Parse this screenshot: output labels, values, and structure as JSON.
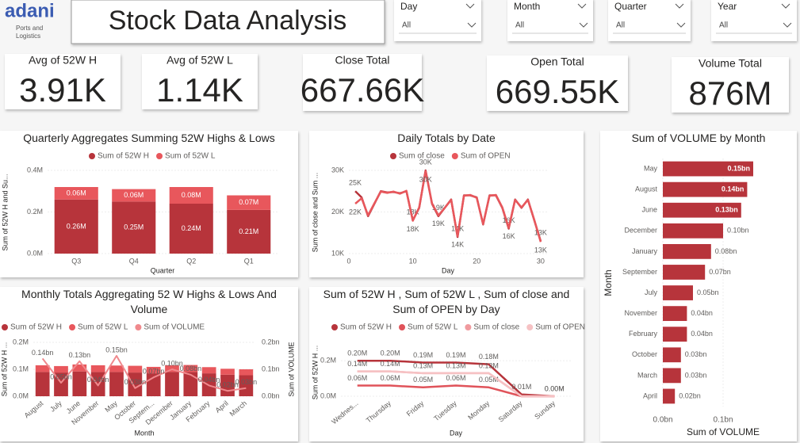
{
  "logo": {
    "brand": "adani",
    "tagline": [
      "Ports and",
      "Logistics"
    ]
  },
  "header": {
    "title": "Stock Data Analysis"
  },
  "slicers": [
    {
      "label": "Day",
      "value": "All"
    },
    {
      "label": "Month",
      "value": "All"
    },
    {
      "label": "Quarter",
      "value": "All"
    },
    {
      "label": "Year",
      "value": "All"
    }
  ],
  "cards": [
    {
      "label": "Avg of 52W H",
      "value": "3.91K"
    },
    {
      "label": "Avg of 52W L",
      "value": "1.14K"
    },
    {
      "label": "Close Total",
      "value": "667.66K"
    },
    {
      "label": "Open Total",
      "value": "669.55K"
    },
    {
      "label": "Volume Total",
      "value": "876M"
    }
  ],
  "chart_data": [
    {
      "type": "bar",
      "stacked": true,
      "title": "Quarterly Aggregates Summing 52W Highs & Lows",
      "x_label": "Quarter",
      "y_label": "Sum of 52W H and Su...",
      "categories": [
        "Q3",
        "Q4",
        "Q2",
        "Q1"
      ],
      "series": [
        {
          "name": "Sum of 52W H",
          "color": "#b7343b",
          "values": [
            260000,
            250000,
            240000,
            210000
          ],
          "value_labels": [
            "0.26M",
            "0.25M",
            "0.24M",
            "0.21M"
          ]
        },
        {
          "name": "Sum of 52W L",
          "color": "#e8575c",
          "values": [
            60000,
            60000,
            80000,
            70000
          ],
          "value_labels": [
            "0.06M",
            "0.06M",
            "0.08M",
            "0.07M"
          ]
        }
      ],
      "ylim": [
        0,
        400000
      ],
      "yticks": [
        {
          "value": 0,
          "label": "0.0M"
        },
        {
          "value": 200000,
          "label": "0.2M"
        },
        {
          "value": 400000,
          "label": "0.4M"
        }
      ]
    },
    {
      "type": "line",
      "title": "Daily Totals by Date",
      "x_label": "Day",
      "y_label": "Sum of close and Sum ...",
      "x": [
        1,
        2,
        3,
        4,
        5,
        6,
        7,
        8,
        9,
        10,
        11,
        12,
        13,
        14,
        15,
        16,
        17,
        18,
        19,
        20,
        21,
        22,
        23,
        24,
        25,
        26,
        27,
        28,
        29,
        30
      ],
      "series": [
        {
          "name": "Sum of close",
          "color": "#b7343b",
          "values": [
            25000,
            23500,
            19000,
            22000,
            25000,
            24700,
            24800,
            24500,
            25000,
            18000,
            21000,
            30000,
            22000,
            19000,
            21000,
            23000,
            14000,
            24000,
            24000,
            23500,
            17000,
            24000,
            24000,
            21000,
            16000,
            23000,
            21000,
            23000,
            18000,
            13000
          ],
          "value_labels": [
            "25K",
            null,
            null,
            null,
            null,
            null,
            null,
            null,
            null,
            "18K",
            null,
            "30K",
            null,
            "19K",
            null,
            null,
            "14K",
            null,
            null,
            null,
            null,
            null,
            null,
            null,
            "16K",
            null,
            null,
            null,
            null,
            "13K"
          ]
        },
        {
          "name": "Sum of OPEN",
          "color": "#e8575c",
          "values": [
            22000,
            23300,
            19200,
            22100,
            24900,
            24600,
            24900,
            24400,
            25100,
            17900,
            21100,
            29800,
            22100,
            19200,
            21000,
            22900,
            14200,
            23900,
            24100,
            23400,
            17100,
            23900,
            24100,
            21100,
            16200,
            22900,
            21100,
            22900,
            18100,
            12800
          ],
          "value_labels": [
            "22K",
            null,
            null,
            null,
            null,
            null,
            null,
            null,
            null,
            "18K",
            null,
            "30K",
            null,
            "19K",
            null,
            null,
            "14K",
            null,
            null,
            null,
            null,
            null,
            null,
            null,
            "16K",
            null,
            null,
            null,
            null,
            "13K"
          ]
        }
      ],
      "xlim": [
        0,
        31
      ],
      "xticks": [
        0,
        10,
        20,
        30
      ],
      "ylim": [
        10000,
        30000
      ],
      "yticks": [
        {
          "value": 10000,
          "label": "10K"
        },
        {
          "value": 20000,
          "label": "20K"
        },
        {
          "value": 30000,
          "label": "30K"
        }
      ]
    },
    {
      "type": "hbar",
      "title": "Sum of VOLUME by Month",
      "x_label": "Sum of VOLUME",
      "y_label": "Month",
      "categories": [
        "May",
        "August",
        "June",
        "December",
        "January",
        "September",
        "July",
        "November",
        "February",
        "October",
        "March",
        "April"
      ],
      "values": [
        150000000,
        140000000,
        130000000,
        100000000,
        80000000,
        70000000,
        50000000,
        40000000,
        40000000,
        30000000,
        30000000,
        20000000
      ],
      "value_labels": [
        "0.15bn",
        "0.14bn",
        "0.13bn",
        "0.10bn",
        "0.08bn",
        "0.07bn",
        "0.05bn",
        "0.04bn",
        "0.04bn",
        "0.03bn",
        "0.03bn",
        "0.02bn"
      ],
      "color": "#b7343b",
      "xlim": [
        0,
        200000000
      ],
      "xticks": [
        {
          "value": 0,
          "label": "0.0bn"
        },
        {
          "value": 100000000,
          "label": "0.1bn"
        }
      ]
    },
    {
      "type": "combo",
      "title": "Monthly Totals Aggregating 52 W Highs & Lows And Volume",
      "x_label": "Month",
      "y_label": "Sum of 52W H ...",
      "y2_label": "Sum of VOLUME",
      "categories": [
        "August",
        "July",
        "June",
        "November",
        "May",
        "October",
        "Septem...",
        "December",
        "January",
        "February",
        "April",
        "March"
      ],
      "series": [
        {
          "name": "Sum of 52W H",
          "color": "#b7343b",
          "values": [
            90000,
            88000,
            92000,
            90000,
            90000,
            88000,
            85000,
            90000,
            90000,
            85000,
            80000,
            78000
          ]
        },
        {
          "name": "Sum of 52W L",
          "color": "#e8575c",
          "values": [
            25000,
            24000,
            26000,
            25000,
            24000,
            25000,
            24000,
            25000,
            26000,
            23000,
            22000,
            22000
          ]
        },
        {
          "name": "Sum of VOLUME",
          "color": "#f0898d",
          "axis": "y2",
          "values": [
            140000000,
            50000000,
            130000000,
            40000000,
            150000000,
            30000000,
            70000000,
            100000000,
            80000000,
            40000000,
            20000000,
            30000000
          ],
          "value_labels": [
            "0.14bn",
            "0.05bn",
            "0.13bn",
            "0.04bn",
            "0.15bn",
            "0.03bn",
            "0.07bn",
            "0.10bn",
            "0.08bn",
            "0.04bn",
            "0.02bn",
            "0.03bn"
          ]
        }
      ],
      "ylim": [
        0,
        200000
      ],
      "yticks": [
        {
          "value": 0,
          "label": "0.0M"
        },
        {
          "value": 100000,
          "label": "0.1M"
        },
        {
          "value": 200000,
          "label": "0.2M"
        }
      ],
      "y2lim": [
        0,
        200000000
      ],
      "y2ticks": [
        {
          "value": 0,
          "label": "0.0bn"
        },
        {
          "value": 100000000,
          "label": "0.1bn"
        },
        {
          "value": 200000000,
          "label": "0.2bn"
        }
      ]
    },
    {
      "type": "line",
      "title": "Sum of 52W H , Sum of 52W L , Sum of close and Sum of OPEN by Day",
      "x_label": "Day",
      "y_label": "Sum of 52W H ...",
      "categories": [
        "Wednes...",
        "Thursday",
        "Friday",
        "Tuesday",
        "Monday",
        "Saturday",
        "Sunday"
      ],
      "series": [
        {
          "name": "Sum of 52W H",
          "color": "#b7343b",
          "values": [
            200000,
            200000,
            190000,
            190000,
            180000,
            10000,
            0
          ],
          "value_labels": [
            "0.20M",
            "0.20M",
            "0.19M",
            "0.19M",
            "0.18M",
            "0.01M",
            "0.00M"
          ]
        },
        {
          "name": "Sum of 52W L",
          "color": "#e0535a",
          "values": [
            60000,
            60000,
            50000,
            60000,
            50000,
            0,
            0
          ],
          "value_labels": [
            "0.06M",
            "0.06M",
            "0.05M",
            "0.06M",
            "0.05M",
            null,
            "0.00M"
          ]
        },
        {
          "name": "Sum of close",
          "color": "#f09a9e",
          "values": [
            140000,
            140000,
            130000,
            130000,
            130000,
            0,
            0
          ],
          "value_labels": [
            "0.14M",
            "0.14M",
            "0.13M",
            "0.13M",
            "0.13M",
            null,
            null
          ]
        },
        {
          "name": "Sum of OPEN",
          "color": "#f6c2c4",
          "values": [
            140000,
            140000,
            130000,
            130000,
            130000,
            0,
            0
          ]
        }
      ],
      "ylim": [
        0,
        250000
      ],
      "yticks": [
        {
          "value": 0,
          "label": "0.0M"
        },
        {
          "value": 200000,
          "label": "0.2M"
        }
      ]
    }
  ]
}
